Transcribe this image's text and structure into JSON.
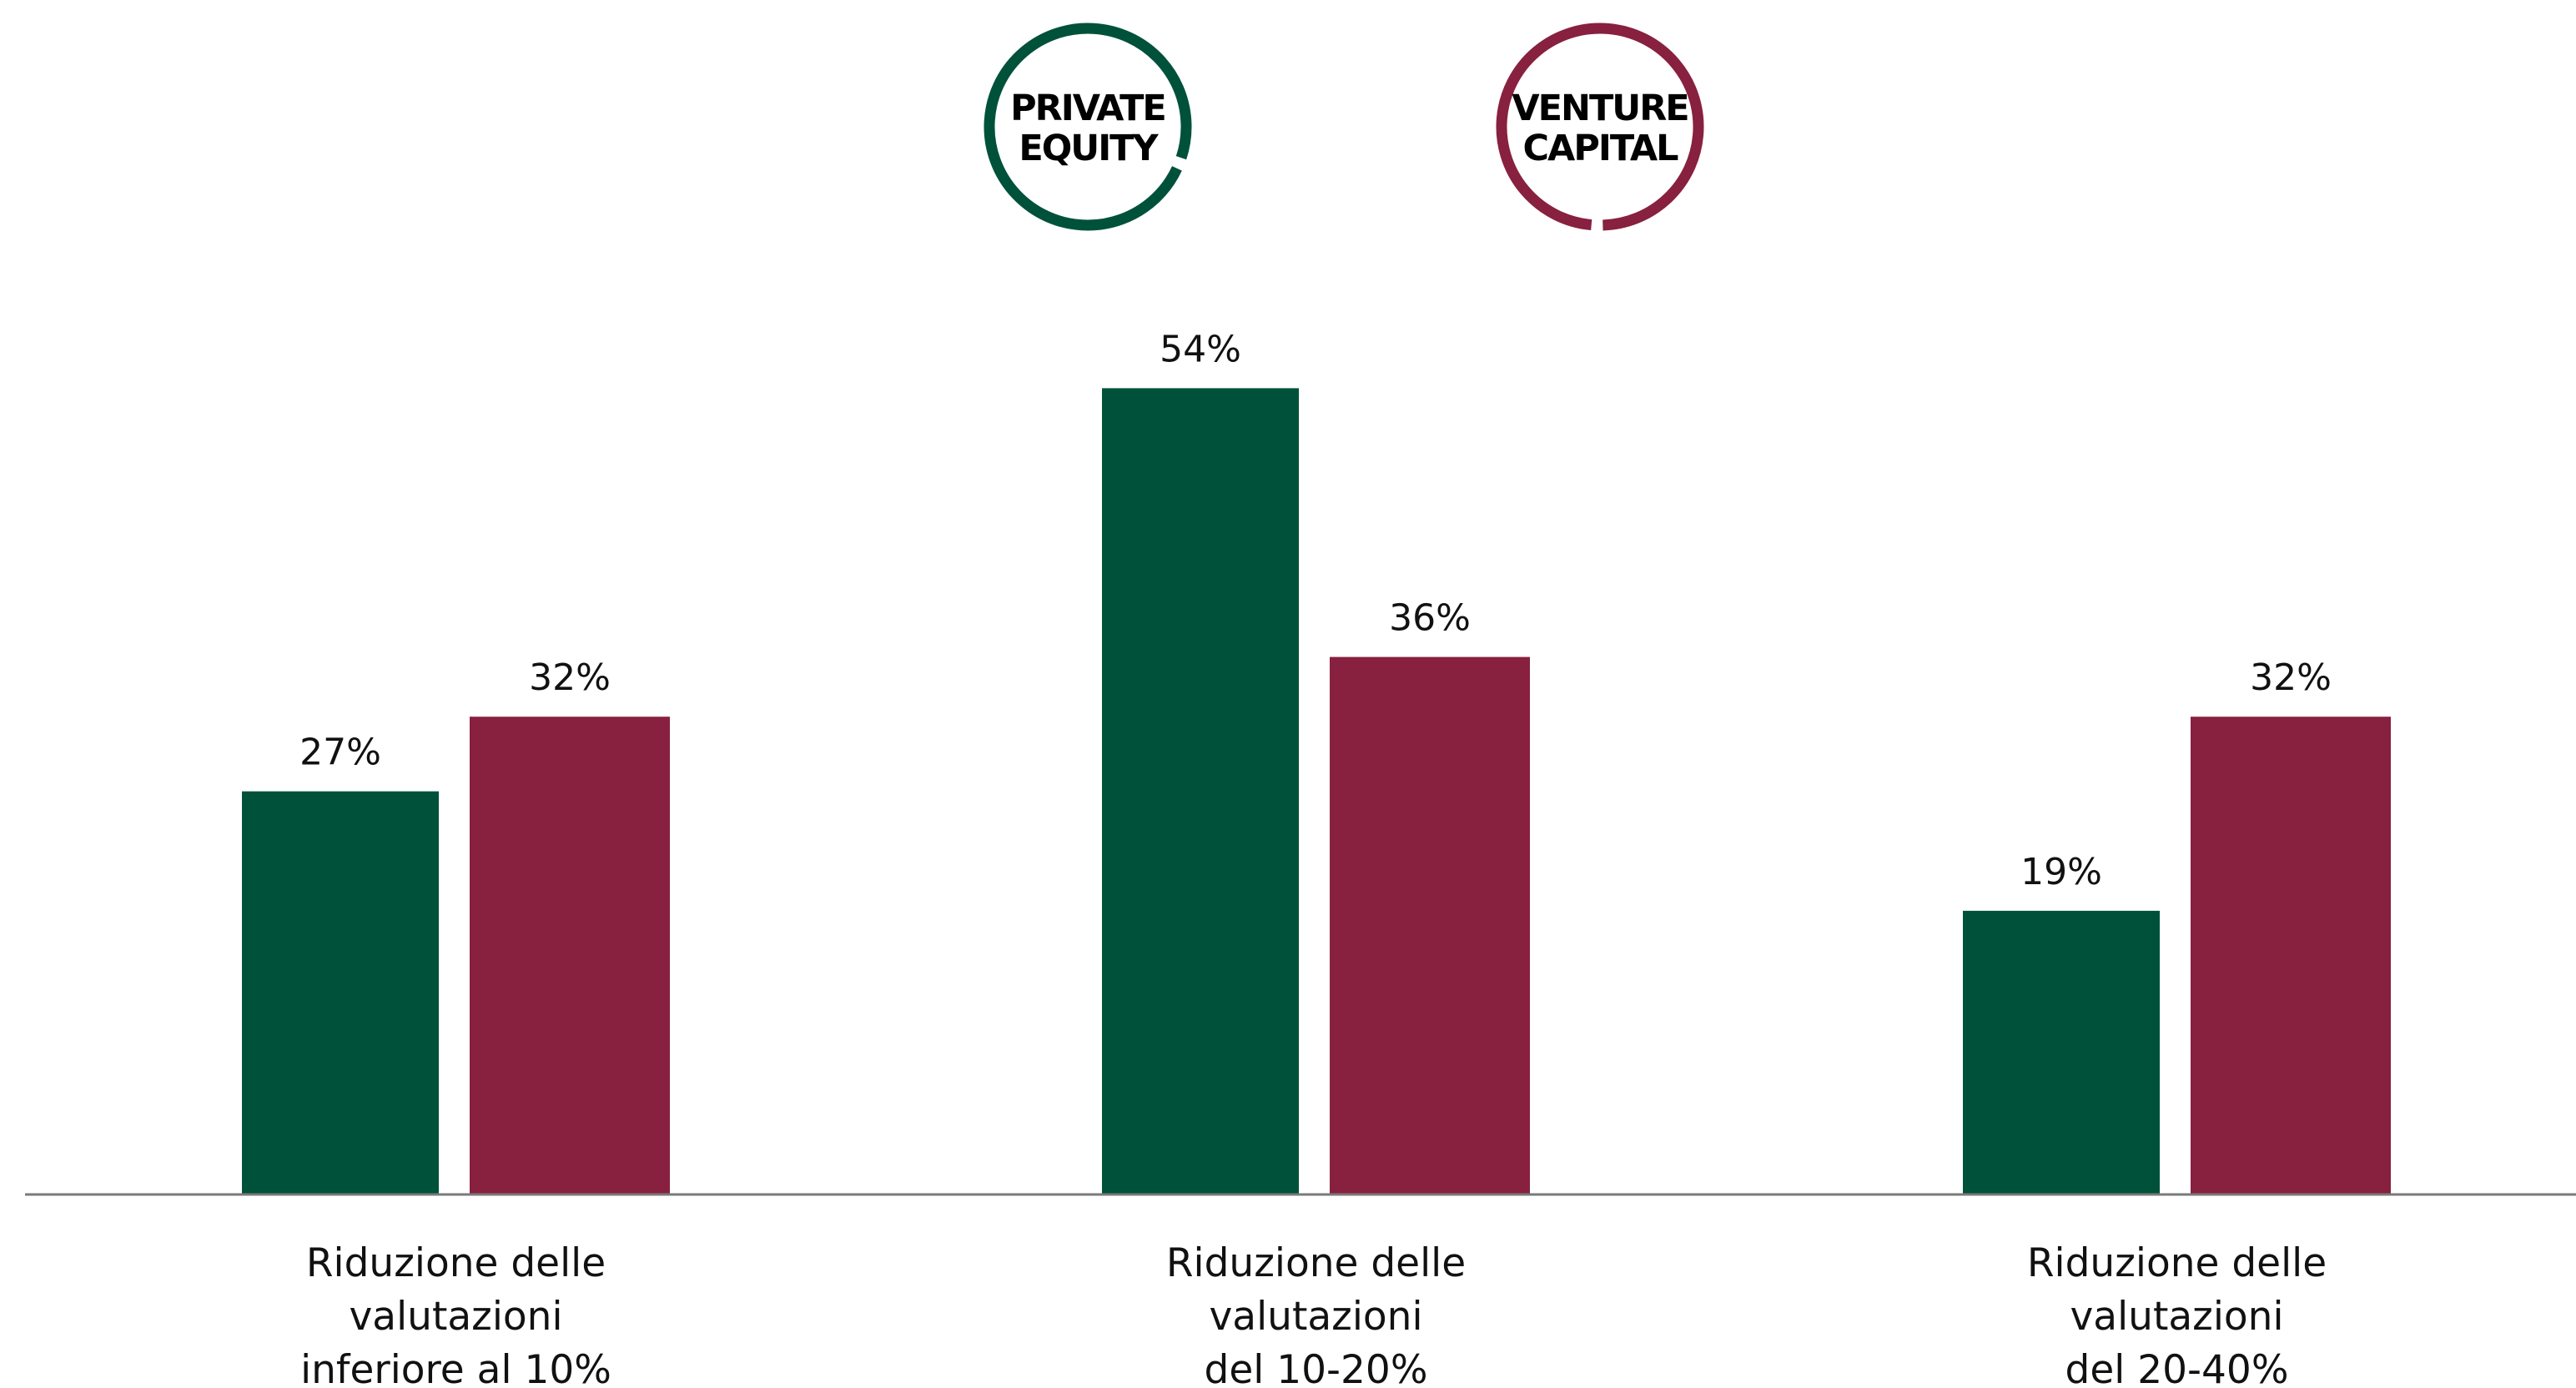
{
  "chart_data": {
    "type": "bar",
    "categories": [
      [
        "Riduzione delle",
        "valutazioni",
        "inferiore al 10%"
      ],
      [
        "Riduzione delle",
        "valutazioni",
        "del 10-20%"
      ],
      [
        "Riduzione delle",
        "valutazioni",
        "del 20-40%"
      ]
    ],
    "series": [
      {
        "legend_lines": [
          "PRIVATE",
          "EQUITY"
        ],
        "color": "#00513A",
        "values": [
          27,
          54,
          19
        ],
        "value_labels": [
          "27%",
          "54%",
          "19%"
        ]
      },
      {
        "legend_lines": [
          "VENTURE",
          "CAPITAL"
        ],
        "color": "#88203F",
        "values": [
          32,
          36,
          32
        ],
        "value_labels": [
          "32%",
          "36%",
          "32%"
        ]
      }
    ],
    "ylim": [
      0,
      60
    ],
    "grid": false,
    "axis_color": "#7a7a7a",
    "legend_placement": "top-center",
    "title": "",
    "xlabel": "",
    "ylabel": ""
  }
}
